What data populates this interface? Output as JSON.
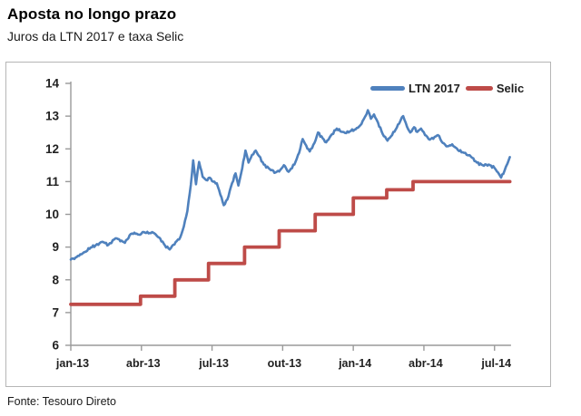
{
  "header": {
    "title": "Aposta no longo prazo",
    "subtitle": "Juros da LTN 2017 e taxa Selic"
  },
  "footer": {
    "source": "Fonte: Tesouro Direto"
  },
  "legend": {
    "items": [
      {
        "label": "LTN 2017",
        "color": "#4F81BD"
      },
      {
        "label": "Selic",
        "color": "#BE4B48"
      }
    ]
  },
  "chart_data": {
    "type": "line",
    "title": "Juros da LTN 2017 e taxa Selic",
    "xlabel": "",
    "ylabel": "",
    "x_unit": "months_since_jan_2013",
    "ylim": [
      6,
      14
    ],
    "y_ticks": [
      6,
      7,
      8,
      9,
      10,
      11,
      12,
      13,
      14
    ],
    "x_tick_positions": [
      0,
      3,
      6,
      9,
      12,
      15,
      18
    ],
    "x_tick_labels": [
      "jan-13",
      "abr-13",
      "jul-13",
      "out-13",
      "jan-14",
      "abr-14",
      "jul-14"
    ],
    "grid": false,
    "legend_position": "top-right",
    "axis_color": "#9a9a9a",
    "tick_label_color": "#212121",
    "series": [
      {
        "name": "LTN 2017",
        "color": "#4F81BD",
        "width": 2.6,
        "step": false,
        "points": [
          [
            0,
            8.62
          ],
          [
            0.2,
            8.68
          ],
          [
            0.4,
            8.78
          ],
          [
            0.6,
            8.85
          ],
          [
            0.85,
            8.99
          ],
          [
            1.05,
            9.05
          ],
          [
            1.35,
            9.16
          ],
          [
            1.6,
            9.07
          ],
          [
            1.9,
            9.27
          ],
          [
            2.15,
            9.2
          ],
          [
            2.3,
            9.13
          ],
          [
            2.55,
            9.4
          ],
          [
            2.7,
            9.44
          ],
          [
            2.9,
            9.38
          ],
          [
            3.1,
            9.46
          ],
          [
            3.3,
            9.42
          ],
          [
            3.5,
            9.44
          ],
          [
            3.65,
            9.35
          ],
          [
            3.8,
            9.26
          ],
          [
            4.0,
            9.05
          ],
          [
            4.2,
            8.93
          ],
          [
            4.45,
            9.15
          ],
          [
            4.65,
            9.3
          ],
          [
            4.8,
            9.63
          ],
          [
            4.95,
            10.1
          ],
          [
            5.1,
            10.9
          ],
          [
            5.2,
            11.65
          ],
          [
            5.32,
            10.92
          ],
          [
            5.45,
            11.6
          ],
          [
            5.6,
            11.15
          ],
          [
            5.75,
            11.05
          ],
          [
            5.9,
            11.12
          ],
          [
            6.05,
            11.0
          ],
          [
            6.2,
            10.95
          ],
          [
            6.35,
            10.6
          ],
          [
            6.5,
            10.28
          ],
          [
            6.65,
            10.45
          ],
          [
            6.85,
            10.95
          ],
          [
            7.0,
            11.25
          ],
          [
            7.12,
            10.88
          ],
          [
            7.28,
            11.4
          ],
          [
            7.42,
            11.95
          ],
          [
            7.55,
            11.58
          ],
          [
            7.7,
            11.82
          ],
          [
            7.85,
            11.95
          ],
          [
            8.0,
            11.78
          ],
          [
            8.2,
            11.52
          ],
          [
            8.45,
            11.38
          ],
          [
            8.7,
            11.28
          ],
          [
            8.9,
            11.36
          ],
          [
            9.05,
            11.5
          ],
          [
            9.25,
            11.3
          ],
          [
            9.5,
            11.52
          ],
          [
            9.7,
            11.88
          ],
          [
            9.85,
            12.3
          ],
          [
            10.0,
            12.1
          ],
          [
            10.15,
            11.92
          ],
          [
            10.35,
            12.18
          ],
          [
            10.5,
            12.5
          ],
          [
            10.7,
            12.32
          ],
          [
            10.85,
            12.2
          ],
          [
            11.1,
            12.45
          ],
          [
            11.3,
            12.62
          ],
          [
            11.5,
            12.52
          ],
          [
            11.7,
            12.48
          ],
          [
            11.9,
            12.55
          ],
          [
            12.1,
            12.6
          ],
          [
            12.3,
            12.72
          ],
          [
            12.5,
            12.98
          ],
          [
            12.62,
            13.18
          ],
          [
            12.75,
            12.92
          ],
          [
            12.88,
            13.05
          ],
          [
            13.05,
            12.8
          ],
          [
            13.25,
            12.45
          ],
          [
            13.45,
            12.25
          ],
          [
            13.65,
            12.42
          ],
          [
            13.85,
            12.65
          ],
          [
            14.0,
            12.85
          ],
          [
            14.12,
            13.0
          ],
          [
            14.28,
            12.68
          ],
          [
            14.42,
            12.5
          ],
          [
            14.58,
            12.66
          ],
          [
            14.72,
            12.52
          ],
          [
            14.88,
            12.62
          ],
          [
            15.05,
            12.42
          ],
          [
            15.25,
            12.28
          ],
          [
            15.45,
            12.36
          ],
          [
            15.6,
            12.42
          ],
          [
            15.8,
            12.18
          ],
          [
            16.0,
            12.08
          ],
          [
            16.2,
            12.14
          ],
          [
            16.45,
            11.96
          ],
          [
            16.7,
            11.88
          ],
          [
            17.0,
            11.76
          ],
          [
            17.25,
            11.58
          ],
          [
            17.5,
            11.5
          ],
          [
            17.75,
            11.52
          ],
          [
            18.0,
            11.42
          ],
          [
            18.15,
            11.28
          ],
          [
            18.28,
            11.12
          ],
          [
            18.42,
            11.32
          ],
          [
            18.55,
            11.55
          ],
          [
            18.65,
            11.75
          ]
        ]
      },
      {
        "name": "Selic",
        "color": "#BE4B48",
        "width": 3.8,
        "step": true,
        "points": [
          [
            0,
            7.25
          ],
          [
            2.96,
            7.25
          ],
          [
            2.96,
            7.5
          ],
          [
            4.42,
            7.5
          ],
          [
            4.42,
            8
          ],
          [
            5.85,
            8
          ],
          [
            5.85,
            8.5
          ],
          [
            7.38,
            8.5
          ],
          [
            7.38,
            9
          ],
          [
            8.85,
            9
          ],
          [
            8.85,
            9.5
          ],
          [
            10.38,
            9.5
          ],
          [
            10.38,
            10
          ],
          [
            12.0,
            10
          ],
          [
            12.0,
            10.5
          ],
          [
            13.42,
            10.5
          ],
          [
            13.42,
            10.75
          ],
          [
            14.54,
            10.75
          ],
          [
            14.54,
            11
          ],
          [
            18.65,
            11
          ]
        ]
      }
    ]
  }
}
